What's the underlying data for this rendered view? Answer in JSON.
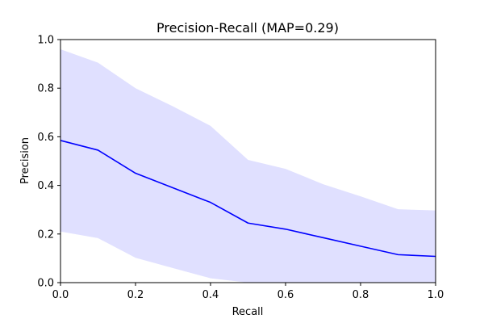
{
  "chart_data": {
    "type": "line",
    "title": "Precision-Recall (MAP=0.29)",
    "xlabel": "Recall",
    "ylabel": "Precision",
    "xlim": [
      0.0,
      1.0
    ],
    "ylim": [
      0.0,
      1.0
    ],
    "grid": false,
    "x_ticks": [
      "0.0",
      "0.2",
      "0.4",
      "0.6",
      "0.8",
      "1.0"
    ],
    "y_ticks": [
      "0.0",
      "0.2",
      "0.4",
      "0.6",
      "0.8",
      "1.0"
    ],
    "x": [
      0.0,
      0.1,
      0.2,
      0.3,
      0.4,
      0.5,
      0.6,
      0.7,
      0.8,
      0.9,
      1.0
    ],
    "series": [
      {
        "values": [
          0.585,
          0.545,
          0.45,
          0.39,
          0.33,
          0.245,
          0.22,
          0.185,
          0.15,
          0.115,
          0.108
        ],
        "color": "#0000ff"
      }
    ],
    "band": {
      "upper": [
        0.96,
        0.905,
        0.8,
        0.725,
        0.645,
        0.505,
        0.468,
        0.405,
        0.355,
        0.302,
        0.297
      ],
      "lower": [
        0.21,
        0.183,
        0.102,
        0.06,
        0.018,
        0.0,
        0.0,
        0.0,
        0.0,
        0.0,
        0.0
      ],
      "color": "#e0e0ff"
    }
  }
}
